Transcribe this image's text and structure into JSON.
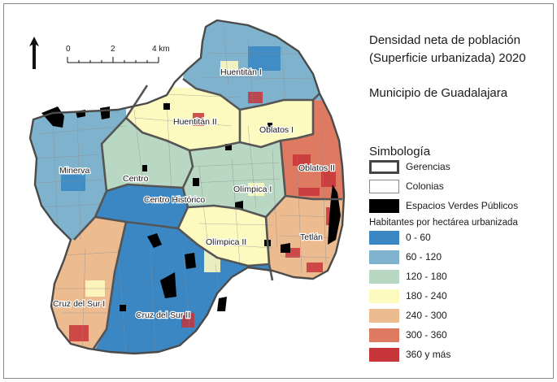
{
  "title": {
    "line1": "Densidad neta de población",
    "line2": "(Superficie urbanizada) 2020",
    "municipality": "Municipio de Guadalajara"
  },
  "legend": {
    "heading": "Simbología",
    "items": [
      {
        "label": "Gerencias",
        "style": "thick-outline"
      },
      {
        "label": "Colonias",
        "style": "thin-outline"
      },
      {
        "label": "Espacios Verdes Públicos",
        "style": "black-fill"
      }
    ],
    "density_heading": "Habitantes por hectárea urbanizada",
    "classes": [
      {
        "label": "0 - 60",
        "color": "#3a87c4"
      },
      {
        "label": "60 - 120",
        "color": "#7fb3cd"
      },
      {
        "label": "120 - 180",
        "color": "#b8d8c3"
      },
      {
        "label": "180 - 240",
        "color": "#fdfac0"
      },
      {
        "label": "240 - 300",
        "color": "#edbb90"
      },
      {
        "label": "300 - 360",
        "color": "#df7a62"
      },
      {
        "label": "360 y más",
        "color": "#c7343a"
      }
    ]
  },
  "scale_bar": {
    "labels": [
      "0",
      "2",
      "4 km"
    ]
  },
  "north_arrow": {
    "icon": "north-arrow-icon"
  },
  "gerencias": [
    {
      "name": "Huentitán I",
      "density_class": 1
    },
    {
      "name": "Huentitán II",
      "density_class": 3
    },
    {
      "name": "Oblatos I",
      "density_class": 3
    },
    {
      "name": "Oblatos II",
      "density_class": 5
    },
    {
      "name": "Minerva",
      "density_class": 1
    },
    {
      "name": "Centro",
      "density_class": 2
    },
    {
      "name": "Centro Histórico",
      "density_class": 0
    },
    {
      "name": "Olímpica I",
      "density_class": 2
    },
    {
      "name": "Olímpica II",
      "density_class": 3
    },
    {
      "name": "Tetlán",
      "density_class": 4
    },
    {
      "name": "Cruz del Sur I",
      "density_class": 4
    },
    {
      "name": "Cruz del Sur II",
      "density_class": 0
    }
  ]
}
